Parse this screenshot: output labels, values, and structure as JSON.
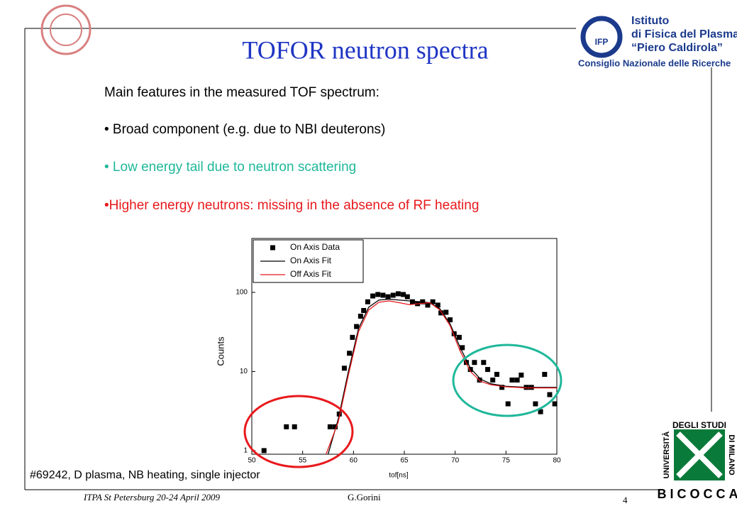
{
  "title": "TOFOR neutron spectra",
  "bullets": [
    {
      "text": "Main features in the measured TOF spectrum:",
      "color": "#000000"
    },
    {
      "text": "• Broad component (e.g. due to NBI deuterons)",
      "color": "#000000"
    },
    {
      "text": "• Low energy tail due to neutron scattering",
      "color": "#1fb89a"
    },
    {
      "text": "•Higher energy neutrons: missing in the absence of RF heating",
      "color": "#e8191c"
    }
  ],
  "caption": "#69242, D plasma, NB heating, single injector",
  "footer": {
    "event": "ITPA St Petersburg 20-24 April 2009",
    "author": "G.Gorini",
    "page": "4"
  },
  "logo_ifp": {
    "mark": "IFP",
    "line1": "Istituto",
    "line2": "di Fisica del Plasma",
    "line3": "“Piero Caldirola”",
    "line4": "Consiglio Nazionale delle Ricerche"
  },
  "logo_bicocca": {
    "left": "UNIVERSITÀ",
    "top": "DEGLI STUDI",
    "right": "DI MILANO",
    "bottom": "BICOCCA"
  },
  "chart_data": {
    "type": "scatter",
    "xlabel": "tof[ns]",
    "ylabel": "Counts",
    "xlim": [
      50,
      80
    ],
    "xticks": [
      50,
      55,
      60,
      65,
      70,
      75,
      80
    ],
    "ylim": [
      0.9,
      480
    ],
    "yticks": [
      1,
      10,
      100
    ],
    "log_scale": true,
    "legend": "top-left",
    "series": [
      {
        "name": "On Axis Data",
        "color": "#000000",
        "kind": "points",
        "x": [
          51.2,
          53.4,
          54.2,
          57.7,
          58.2,
          58.6,
          59.1,
          59.6,
          59.9,
          60.3,
          60.7,
          61.0,
          61.4,
          61.9,
          62.4,
          62.9,
          63.4,
          63.9,
          64.4,
          64.9,
          65.3,
          65.8,
          66.3,
          66.8,
          67.3,
          67.8,
          68.3,
          68.6,
          69.1,
          69.5,
          69.9,
          70.4,
          70.7,
          71.1,
          71.5,
          71.9,
          72.4,
          72.8,
          73.2,
          73.7,
          74.1,
          74.6,
          75.2,
          75.6,
          76.1,
          76.5,
          77.0,
          77.5,
          77.9,
          78.4,
          78.8,
          79.3,
          79.8
        ],
        "values": [
          1,
          2,
          2,
          2,
          2,
          2.9,
          11,
          17,
          27,
          37,
          50,
          59,
          76,
          90,
          94,
          92,
          88,
          92,
          96,
          94,
          88,
          76,
          72,
          76,
          69,
          76,
          69,
          55,
          56,
          45,
          30,
          27,
          20,
          13,
          10.6,
          13,
          7.8,
          13,
          10.6,
          7.8,
          9.2,
          6.3,
          3.9,
          7.8,
          7.8,
          9,
          6.3,
          6.3,
          3.9,
          3.1,
          9.2,
          5.1,
          3.9
        ]
      },
      {
        "name": "On Axis Fit",
        "color": "#000000",
        "kind": "line",
        "x": [
          57.5,
          58.5,
          59.5,
          60.5,
          61.5,
          62.5,
          63.5,
          64.5,
          65.5,
          66.5,
          67.5,
          68.5,
          69.5,
          70.5,
          71.5,
          72.5,
          73.5,
          75,
          77,
          80
        ],
        "values": [
          0.9,
          2.5,
          10,
          35,
          65,
          80,
          82,
          80,
          78,
          76,
          74,
          62,
          40,
          20,
          11,
          8,
          7,
          6.5,
          6.3,
          6.3
        ]
      },
      {
        "name": "Off Axis Fit",
        "color": "#e8191c",
        "kind": "line",
        "x": [
          57.3,
          58.5,
          59.5,
          60.5,
          61.5,
          62.5,
          63.5,
          64.5,
          65.5,
          66.5,
          67.5,
          68.5,
          69.5,
          70.5,
          71.5,
          72.5,
          73.5,
          75,
          77,
          80
        ],
        "values": [
          0.9,
          2.3,
          9,
          32,
          60,
          75,
          78,
          74,
          70,
          72,
          74,
          60,
          38,
          18,
          10,
          7.5,
          6.8,
          6.4,
          6.2,
          6.2
        ]
      }
    ]
  }
}
